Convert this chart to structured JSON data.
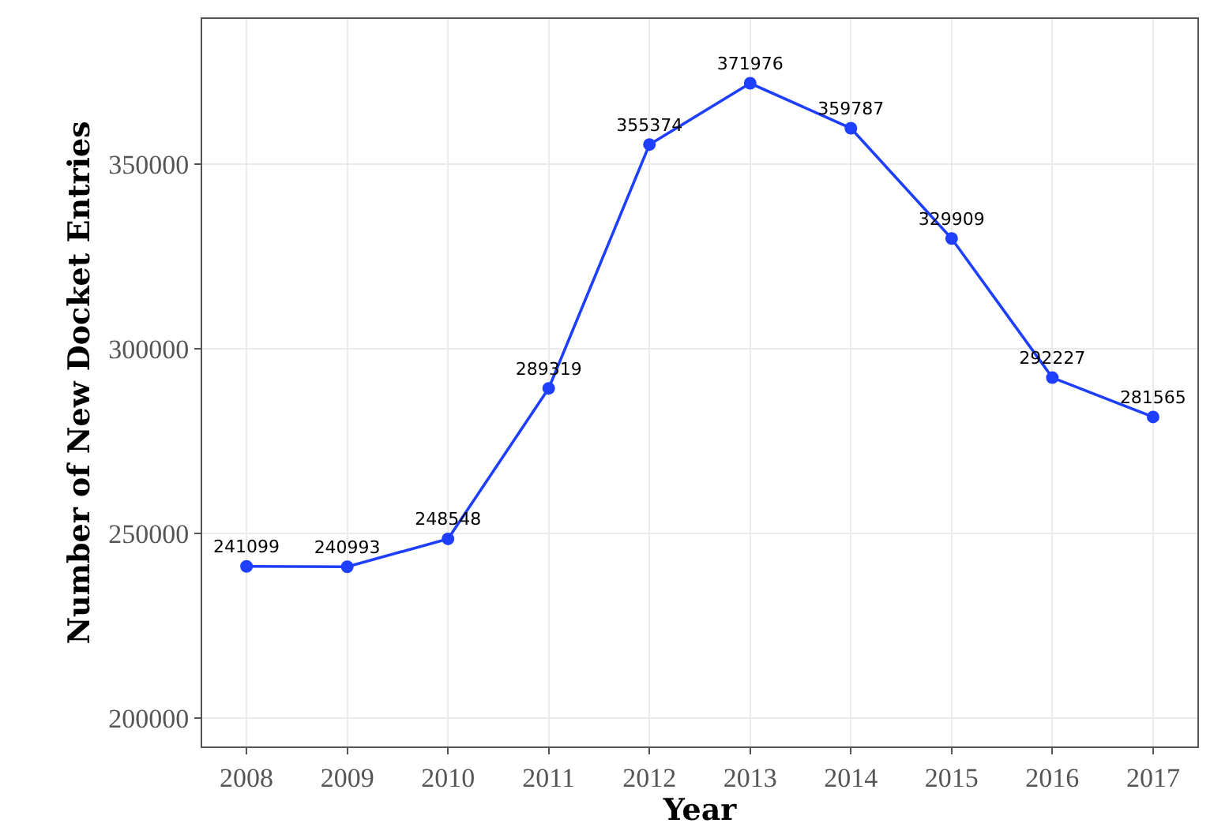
{
  "chart_data": {
    "type": "line",
    "xlabel": "Year",
    "ylabel": "Number of New Docket Entries",
    "x": [
      2008,
      2009,
      2010,
      2011,
      2012,
      2013,
      2014,
      2015,
      2016,
      2017
    ],
    "series": [
      {
        "color": "#1f3fff",
        "values": [
          241099,
          240993,
          248548,
          289319,
          355374,
          371976,
          359787,
          329909,
          292227,
          281565
        ]
      }
    ],
    "xlim": [
      2007.56,
      2017.44
    ],
    "xticks": [
      2008,
      2009,
      2010,
      2011,
      2012,
      2013,
      2014,
      2015,
      2016,
      2017
    ],
    "ylim": [
      192300,
      389400
    ],
    "yticks": [
      200000,
      250000,
      300000,
      350000
    ],
    "grid": true,
    "marker": "circle",
    "line_style": "solid",
    "data_labels": true,
    "legend": false
  }
}
